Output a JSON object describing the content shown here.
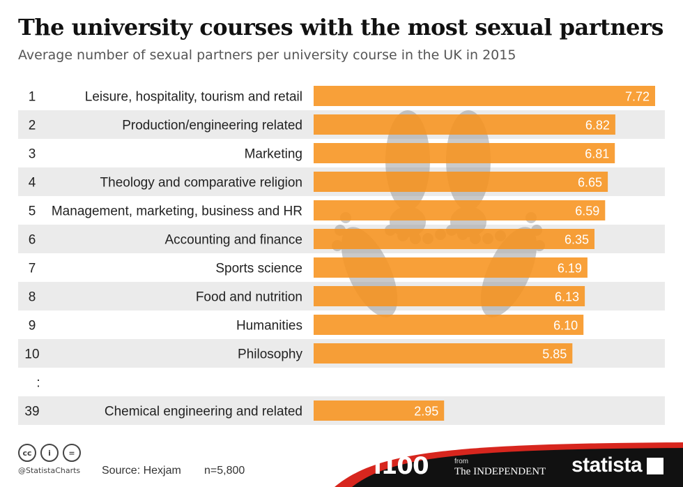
{
  "title": "The university courses with the most sexual partners",
  "subtitle": "Average number of sexual partners per university course in the UK in 2015",
  "chart_data": {
    "type": "bar",
    "orientation": "horizontal",
    "title": "The university courses with the most sexual partners",
    "subtitle": "Average number of sexual partners per university course in the UK in 2015",
    "ranks": [
      "1",
      "2",
      "3",
      "4",
      "5",
      "6",
      "7",
      "8",
      "9",
      "10",
      "39"
    ],
    "categories": [
      "Leisure, hospitality, tourism and retail",
      "Production/engineering related",
      "Marketing",
      "Theology and comparative religion",
      "Management, marketing, business and HR",
      "Accounting and finance",
      "Sports science",
      "Food and nutrition",
      "Humanities",
      "Philosophy",
      "Chemical engineering and related"
    ],
    "values": [
      7.72,
      6.82,
      6.81,
      6.65,
      6.59,
      6.35,
      6.19,
      6.13,
      6.1,
      5.85,
      2.95
    ],
    "value_labels": [
      "7.72",
      "6.82",
      "6.81",
      "6.65",
      "6.59",
      "6.35",
      "6.19",
      "6.13",
      "6.10",
      "5.85",
      "2.95"
    ],
    "gap_marker": ":",
    "xlim": [
      0,
      7.72
    ],
    "bar_color": "#f7931e",
    "stripe_color": "#ebebeb",
    "watermark": "footprints-icon"
  },
  "footer": {
    "license_icons": [
      "cc-icon",
      "by-icon",
      "nd-icon"
    ],
    "license_glyphs": [
      "cc",
      "i",
      "="
    ],
    "handle": "@StatistaCharts",
    "source": "Source: Hexjam",
    "n": "n=5,800",
    "brand_i100": "i100",
    "brand_from": "from",
    "brand_independent": "The INDEPENDENT",
    "brand_statista": "statista",
    "band_color": "#111111",
    "accent_color": "#d7261e"
  }
}
